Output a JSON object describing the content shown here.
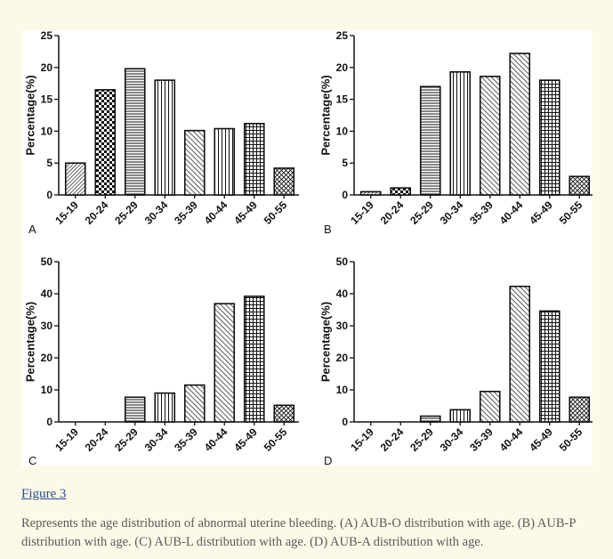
{
  "figure": {
    "link_label": "Figure 3",
    "caption": "Represents the age distribution of abnormal uterine bleeding. (A) AUB-O distribution with age. (B) AUB-P distribution with age. (C) AUB-L distribution with age. (D) AUB-A distribution with age."
  },
  "chart_data": [
    {
      "type": "bar",
      "panel_letter": "A",
      "categories": [
        "15-19",
        "20-24",
        "25-29",
        "30-34",
        "35-39",
        "40-44",
        "45-49",
        "50-55"
      ],
      "values": [
        5.0,
        16.5,
        19.8,
        18.0,
        10.1,
        10.4,
        11.2,
        4.2
      ],
      "ylabel": "Percentage(%)",
      "ylim": [
        0,
        25
      ],
      "yticks": [
        0,
        5,
        10,
        15,
        20,
        25
      ],
      "patterns": [
        "hatch-dense",
        "checker",
        "horizontal",
        "vertical",
        "diagonal-right",
        "vertical",
        "grid",
        "cross"
      ],
      "grid": false
    },
    {
      "type": "bar",
      "panel_letter": "B",
      "categories": [
        "15-19",
        "20-24",
        "25-29",
        "30-34",
        "35-39",
        "40-44",
        "45-49",
        "50-55"
      ],
      "values": [
        0.5,
        1.1,
        17.0,
        19.3,
        18.6,
        22.2,
        18.0,
        2.9
      ],
      "ylabel": "Percentage(%)",
      "ylim": [
        0,
        25
      ],
      "yticks": [
        0,
        5,
        10,
        15,
        20,
        25
      ],
      "patterns": [
        "hatch-dense",
        "checker",
        "horizontal",
        "vertical",
        "diagonal-right",
        "diagonal-right",
        "grid",
        "cross"
      ],
      "grid": false
    },
    {
      "type": "bar",
      "panel_letter": "C",
      "categories": [
        "15-19",
        "20-24",
        "25-29",
        "30-34",
        "35-39",
        "40-44",
        "45-49",
        "50-55"
      ],
      "values": [
        0,
        0,
        7.7,
        9.0,
        11.5,
        36.9,
        39.2,
        5.2
      ],
      "ylabel": "Percentage(%)",
      "ylim": [
        0,
        50
      ],
      "yticks": [
        0,
        10,
        20,
        30,
        40,
        50
      ],
      "patterns": [
        "hatch-dense",
        "checker",
        "horizontal",
        "vertical",
        "diagonal-right",
        "diagonal-right",
        "grid",
        "cross"
      ],
      "grid": false
    },
    {
      "type": "bar",
      "panel_letter": "D",
      "categories": [
        "15-19",
        "20-24",
        "25-29",
        "30-34",
        "35-39",
        "40-44",
        "45-49",
        "50-55"
      ],
      "values": [
        0,
        0,
        1.8,
        3.8,
        9.5,
        42.3,
        34.6,
        7.7
      ],
      "ylabel": "Percentage(%)",
      "ylim": [
        0,
        50
      ],
      "yticks": [
        0,
        10,
        20,
        30,
        40,
        50
      ],
      "patterns": [
        "hatch-dense",
        "checker",
        "horizontal",
        "vertical",
        "diagonal-right",
        "diagonal-right",
        "grid",
        "cross"
      ],
      "grid": false
    }
  ]
}
